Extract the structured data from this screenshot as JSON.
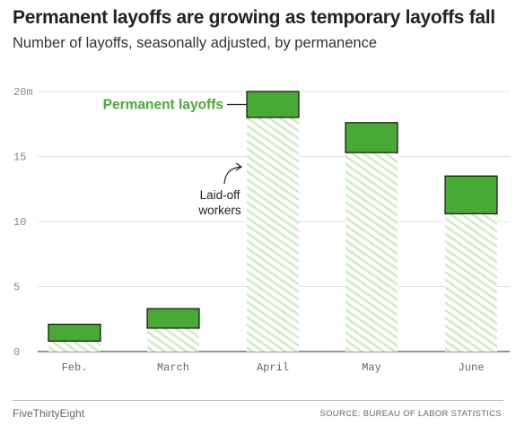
{
  "header": {
    "title": "Permanent layoffs are growing as temporary layoffs fall",
    "subtitle": "Number of layoffs, seasonally adjusted, by permanence"
  },
  "footer": {
    "brand": "FiveThirtyEight",
    "source": "SOURCE: BUREAU OF LABOR STATISTICS"
  },
  "colors": {
    "permanent": "#48a934",
    "total_hatch": "#cdeac3",
    "grid": "#e2e2e2",
    "text": "#222222",
    "axis_text": "#888888"
  },
  "chart_data": {
    "type": "bar",
    "title": "Permanent layoffs are growing as temporary layoffs fall",
    "subtitle": "Number of layoffs, seasonally adjusted, by permanence",
    "categories": [
      "Feb.",
      "March",
      "April",
      "May",
      "June"
    ],
    "series": [
      {
        "name": "Laid-off workers",
        "values": [
          0.8,
          1.8,
          18.0,
          15.3,
          10.6
        ]
      },
      {
        "name": "Permanent layoffs",
        "values": [
          1.3,
          1.5,
          2.0,
          2.3,
          2.9
        ]
      }
    ],
    "stacked": true,
    "ylim": [
      0,
      20
    ],
    "yticks": [
      0,
      5,
      10,
      15,
      20
    ],
    "ytick_labels": [
      "0",
      "5",
      "10",
      "15",
      "20m"
    ],
    "grid": true,
    "annotations": [
      {
        "text": "Permanent layoffs",
        "category": "April"
      },
      {
        "text_lines": [
          "Laid-off",
          "workers"
        ],
        "category": "April"
      }
    ]
  }
}
